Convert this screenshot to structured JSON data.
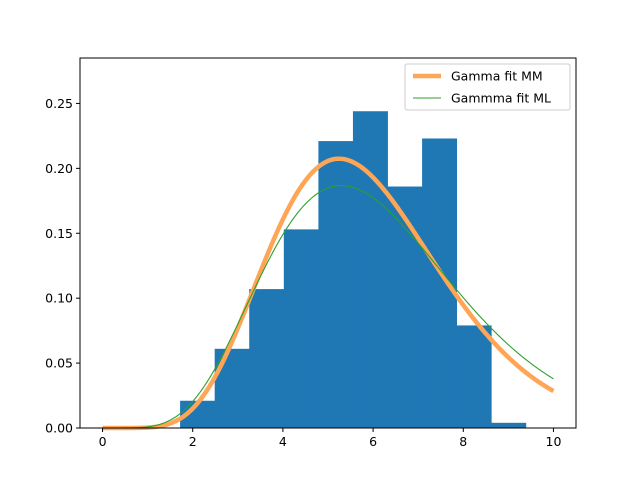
{
  "chart_data": {
    "type": "histogram-with-lines",
    "title": "",
    "xlabel": "",
    "ylabel": "",
    "xlim": [
      -0.5,
      10.5
    ],
    "ylim": [
      0,
      0.285
    ],
    "x_ticks": [
      0,
      2,
      4,
      6,
      8,
      10
    ],
    "y_ticks": [
      0.0,
      0.05,
      0.1,
      0.15,
      0.2,
      0.25
    ],
    "y_tick_labels": [
      "0.00",
      "0.05",
      "0.10",
      "0.15",
      "0.20",
      "0.25"
    ],
    "grid": false,
    "legend": {
      "position": "top-right"
    },
    "histogram": {
      "color": "#1f77b4",
      "bin_edges": [
        1.72,
        2.487,
        3.253,
        4.02,
        4.787,
        5.553,
        6.32,
        7.087,
        7.853,
        8.62,
        9.387
      ],
      "densities": [
        0.021,
        0.061,
        0.107,
        0.153,
        0.221,
        0.244,
        0.186,
        0.223,
        0.079,
        0.004
      ]
    },
    "series": [
      {
        "name": "Gamma fit MM",
        "color": "#ffa556",
        "distribution": "gamma",
        "shape": 8.6,
        "scale": 0.69
      },
      {
        "name": "Gammma fit ML",
        "color": "#2ca02c",
        "distribution": "gamma",
        "shape": 7.3,
        "scale": 0.84
      }
    ]
  }
}
